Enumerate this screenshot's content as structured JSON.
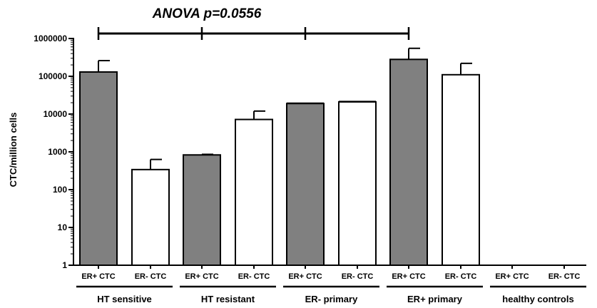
{
  "chart_data": {
    "type": "bar",
    "title": "",
    "ylabel": "CTC/million cells",
    "xlabel": "",
    "yscale": "log",
    "ylim": [
      1,
      1000000
    ],
    "yticks": [
      "1",
      "10",
      "100",
      "1000",
      "10000",
      "100000",
      "1000000"
    ],
    "grid": false,
    "annotation": "ANOVA p=0.0556",
    "groups": [
      {
        "label": "HT sensitive",
        "bars": [
          {
            "label": "ER+ CTC",
            "value": 130000,
            "error": 130000,
            "fill": "gray"
          },
          {
            "label": "ER- CTC",
            "value": 340,
            "error": 290,
            "fill": "white"
          }
        ]
      },
      {
        "label": "HT resistant",
        "bars": [
          {
            "label": "ER+ CTC",
            "value": 830,
            "error": 30,
            "fill": "gray"
          },
          {
            "label": "ER- CTC",
            "value": 7200,
            "error": 4800,
            "fill": "white"
          }
        ]
      },
      {
        "label": "ER- primary",
        "bars": [
          {
            "label": "ER+ CTC",
            "value": 19000,
            "error": 0,
            "fill": "gray"
          },
          {
            "label": "ER- CTC",
            "value": 21000,
            "error": 0,
            "fill": "white"
          }
        ]
      },
      {
        "label": "ER+ primary",
        "bars": [
          {
            "label": "ER+ CTC",
            "value": 280000,
            "error": 270000,
            "fill": "gray"
          },
          {
            "label": "ER- CTC",
            "value": 110000,
            "error": 110000,
            "fill": "white"
          }
        ]
      },
      {
        "label": "healthy controls",
        "bars": [
          {
            "label": "ER+ CTC",
            "value": null,
            "error": 0,
            "fill": "gray"
          },
          {
            "label": "ER- CTC",
            "value": null,
            "error": 0,
            "fill": "white"
          }
        ]
      }
    ]
  },
  "colors": {
    "gray_bar": "#808080",
    "white_bar": "#ffffff",
    "stroke": "#000000"
  }
}
